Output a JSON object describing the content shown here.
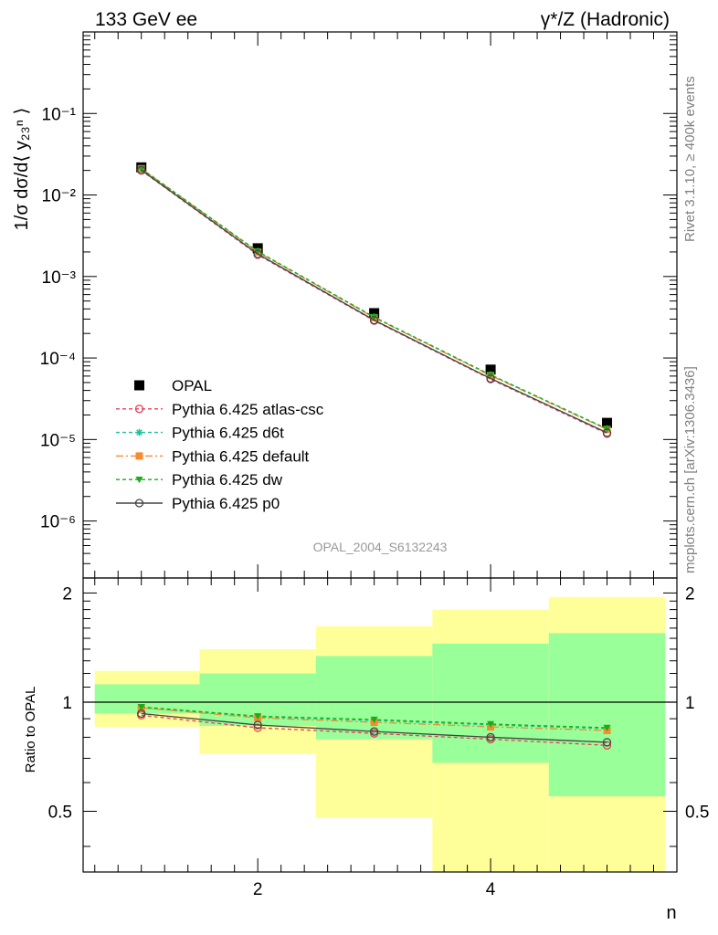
{
  "header": {
    "left_title": "133 GeV ee",
    "right_title": "γ*/Z (Hadronic)"
  },
  "side_labels": {
    "rivet": "Rivet 3.1.10, ≥ 400k events",
    "mcplots": "mcplots.cern.ch [arXiv:1306.3436]"
  },
  "watermark": "OPAL_2004_S6132243",
  "colors": {
    "data": "#000000",
    "atlas_csc": "#e8405c",
    "d6t": "#1fbf9a",
    "default": "#f98a2e",
    "dw": "#1aad1a",
    "p0": "#444444",
    "band_outer": "#ffff99",
    "band_inner": "#99ff99"
  },
  "chart_data": [
    {
      "type": "scatter",
      "name": "main",
      "yscale": "log",
      "ylabel": "1/σ dσ/d⟨ y₂₃ⁿ ⟩",
      "xlabel": "n",
      "xlim": [
        0.5,
        5.6
      ],
      "ylim": [
        2e-07,
        1
      ],
      "ytick_labels": [
        "10⁻⁶",
        "10⁻⁵",
        "10⁻⁴",
        "10⁻³",
        "10⁻²",
        "10⁻¹"
      ],
      "ytick_values": [
        1e-06,
        1e-05,
        0.0001,
        0.001,
        0.01,
        0.1
      ],
      "x": [
        1,
        2,
        3,
        4,
        5
      ],
      "series": [
        {
          "name": "OPAL",
          "key": "data",
          "values": [
            0.0218,
            0.00222,
            0.000355,
            7.2e-05,
            1.6e-05
          ]
        },
        {
          "name": "Pythia 6.425 atlas-csc",
          "key": "atlas_csc",
          "values": [
            0.02,
            0.00185,
            0.000287,
            5.5e-05,
            1.18e-05
          ]
        },
        {
          "name": "Pythia 6.425 d6t",
          "key": "d6t",
          "values": [
            0.021,
            0.00202,
            0.000316,
            6.2e-05,
            1.35e-05
          ]
        },
        {
          "name": "Pythia 6.425 default",
          "key": "default",
          "values": [
            0.021,
            0.002,
            0.000313,
            6.1e-05,
            1.33e-05
          ]
        },
        {
          "name": "Pythia 6.425 dw",
          "key": "dw",
          "values": [
            0.021,
            0.00203,
            0.000318,
            6.2e-05,
            1.35e-05
          ]
        },
        {
          "name": "Pythia 6.425 p0",
          "key": "p0",
          "values": [
            0.0202,
            0.00189,
            0.000291,
            5.6e-05,
            1.21e-05
          ]
        }
      ]
    },
    {
      "type": "line",
      "name": "ratio",
      "ylabel": "Ratio to OPAL",
      "xlabel": "n",
      "xlim": [
        0.5,
        5.6
      ],
      "ylim": [
        0.34,
        2.2
      ],
      "ytick_labels": [
        "0.5",
        "1",
        "2"
      ],
      "ytick_values": [
        0.5,
        1,
        2
      ],
      "xtick_labels": [
        "2",
        "4"
      ],
      "xtick_values": [
        2,
        4
      ],
      "bands": [
        {
          "x": [
            0.6,
            1.5
          ],
          "outer": [
            0.855,
            1.22
          ],
          "inner": [
            0.93,
            1.12
          ]
        },
        {
          "x": [
            1.5,
            2.5
          ],
          "outer": [
            0.72,
            1.4
          ],
          "inner": [
            0.86,
            1.2
          ]
        },
        {
          "x": [
            2.5,
            3.5
          ],
          "outer": [
            0.48,
            1.62
          ],
          "inner": [
            0.79,
            1.34
          ]
        },
        {
          "x": [
            3.5,
            4.5
          ],
          "outer": [
            0.3,
            1.8
          ],
          "inner": [
            0.68,
            1.45
          ]
        },
        {
          "x": [
            4.5,
            5.5
          ],
          "outer": [
            0.3,
            1.95
          ],
          "inner": [
            0.55,
            1.55
          ]
        }
      ],
      "x": [
        1,
        2,
        3,
        4,
        5
      ],
      "series": [
        {
          "name": "Pythia 6.425 atlas-csc",
          "key": "atlas_csc",
          "values": [
            0.92,
            0.85,
            0.82,
            0.79,
            0.76
          ]
        },
        {
          "name": "Pythia 6.425 d6t",
          "key": "d6t",
          "values": [
            0.965,
            0.91,
            0.89,
            0.865,
            0.845
          ]
        },
        {
          "name": "Pythia 6.425 default",
          "key": "default",
          "values": [
            0.965,
            0.905,
            0.88,
            0.855,
            0.835
          ]
        },
        {
          "name": "Pythia 6.425 dw",
          "key": "dw",
          "values": [
            0.97,
            0.915,
            0.895,
            0.87,
            0.85
          ]
        },
        {
          "name": "Pythia 6.425 p0",
          "key": "p0",
          "values": [
            0.93,
            0.865,
            0.83,
            0.8,
            0.775
          ]
        }
      ]
    }
  ],
  "legend": [
    {
      "label": "OPAL",
      "key": "data"
    },
    {
      "label": "Pythia 6.425 atlas-csc",
      "key": "atlas_csc"
    },
    {
      "label": "Pythia 6.425 d6t",
      "key": "d6t"
    },
    {
      "label": "Pythia 6.425 default",
      "key": "default"
    },
    {
      "label": "Pythia 6.425 dw",
      "key": "dw"
    },
    {
      "label": "Pythia 6.425 p0",
      "key": "p0"
    }
  ]
}
